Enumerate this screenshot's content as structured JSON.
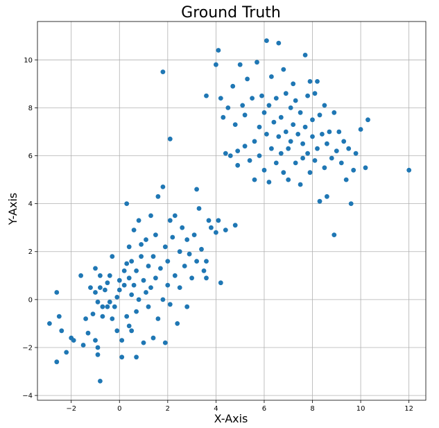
{
  "chart_data": {
    "type": "scatter",
    "title": "Ground Truth",
    "xlabel": "X-Axis",
    "ylabel": "Y-Axis",
    "xlim": [
      -3.4,
      12.7
    ],
    "ylim": [
      -4.2,
      11.6
    ],
    "xticks": [
      -2,
      0,
      2,
      4,
      6,
      8,
      10,
      12
    ],
    "yticks": [
      -4,
      -2,
      0,
      2,
      4,
      6,
      8,
      10
    ],
    "grid": true,
    "marker_color": "#1f77b4",
    "series": [
      {
        "points": [
          [
            -2.9,
            -1.0
          ],
          [
            -2.6,
            0.3
          ],
          [
            -2.6,
            -2.6
          ],
          [
            -2.5,
            -0.7
          ],
          [
            -2.4,
            -1.3
          ],
          [
            -2.2,
            -2.2
          ],
          [
            -2.0,
            -1.6
          ],
          [
            -1.9,
            -1.7
          ],
          [
            -1.6,
            1.0
          ],
          [
            -1.5,
            -1.9
          ],
          [
            -1.4,
            -0.8
          ],
          [
            -1.3,
            -1.4
          ],
          [
            -1.2,
            0.5
          ],
          [
            -1.1,
            -0.6
          ],
          [
            -1.0,
            -1.7
          ],
          [
            -1.0,
            0.3
          ],
          [
            -1.0,
            1.3
          ],
          [
            -0.9,
            -2.3
          ],
          [
            -0.9,
            -0.1
          ],
          [
            -0.9,
            -2.0
          ],
          [
            -0.8,
            -3.4
          ],
          [
            -0.8,
            0.5
          ],
          [
            -0.8,
            1.0
          ],
          [
            -0.7,
            -0.3
          ],
          [
            -0.7,
            -0.7
          ],
          [
            -0.6,
            0.4
          ],
          [
            -0.5,
            0.7
          ],
          [
            -0.5,
            -0.3
          ],
          [
            -0.4,
            1.0
          ],
          [
            -0.4,
            -0.1
          ],
          [
            -0.3,
            -0.8
          ],
          [
            -0.3,
            1.8
          ],
          [
            -0.2,
            -0.3
          ],
          [
            -0.1,
            0.1
          ],
          [
            -0.1,
            -1.3
          ],
          [
            0.0,
            0.4
          ],
          [
            0.0,
            0.8
          ],
          [
            0.1,
            -1.7
          ],
          [
            0.1,
            -2.4
          ],
          [
            0.2,
            0.6
          ],
          [
            0.2,
            1.2
          ],
          [
            0.3,
            -0.7
          ],
          [
            0.3,
            1.5
          ],
          [
            0.3,
            4.0
          ],
          [
            0.4,
            0.9
          ],
          [
            0.4,
            -1.1
          ],
          [
            0.4,
            2.2
          ],
          [
            0.5,
            1.6
          ],
          [
            0.5,
            0.2
          ],
          [
            0.5,
            -1.3
          ],
          [
            0.6,
            2.9
          ],
          [
            0.6,
            0.6
          ],
          [
            0.7,
            -0.5
          ],
          [
            0.7,
            1.2
          ],
          [
            0.7,
            -2.4
          ],
          [
            0.8,
            3.3
          ],
          [
            0.8,
            0.0
          ],
          [
            0.9,
            2.3
          ],
          [
            0.9,
            1.8
          ],
          [
            1.0,
            -1.8
          ],
          [
            1.0,
            0.8
          ],
          [
            1.1,
            2.5
          ],
          [
            1.1,
            0.3
          ],
          [
            1.2,
            1.4
          ],
          [
            1.2,
            -0.3
          ],
          [
            1.3,
            0.5
          ],
          [
            1.3,
            3.5
          ],
          [
            1.4,
            1.8
          ],
          [
            1.4,
            -1.6
          ],
          [
            1.5,
            0.9
          ],
          [
            1.5,
            2.7
          ],
          [
            1.6,
            -0.8
          ],
          [
            1.6,
            4.3
          ],
          [
            1.7,
            1.3
          ],
          [
            1.8,
            4.7
          ],
          [
            1.8,
            0.0
          ],
          [
            1.8,
            9.5
          ],
          [
            1.9,
            2.2
          ],
          [
            1.9,
            -1.8
          ],
          [
            2.0,
            1.6
          ],
          [
            2.0,
            0.6
          ],
          [
            2.1,
            6.7
          ],
          [
            2.1,
            3.3
          ],
          [
            2.1,
            -0.2
          ],
          [
            2.2,
            2.6
          ],
          [
            2.3,
            1.0
          ],
          [
            2.3,
            3.5
          ],
          [
            2.4,
            -1.0
          ],
          [
            2.5,
            2.0
          ],
          [
            2.5,
            0.5
          ],
          [
            2.6,
            3.0
          ],
          [
            2.7,
            1.4
          ],
          [
            2.8,
            2.5
          ],
          [
            2.8,
            -0.3
          ],
          [
            2.9,
            1.9
          ],
          [
            3.0,
            0.9
          ],
          [
            3.1,
            2.7
          ],
          [
            3.2,
            4.6
          ],
          [
            3.2,
            1.6
          ],
          [
            3.3,
            3.8
          ],
          [
            3.4,
            2.1
          ],
          [
            3.5,
            1.2
          ],
          [
            3.6,
            1.6
          ],
          [
            3.6,
            0.9
          ],
          [
            3.7,
            3.3
          ],
          [
            3.8,
            3.0
          ],
          [
            4.0,
            2.8
          ],
          [
            4.1,
            3.3
          ],
          [
            4.2,
            0.7
          ],
          [
            4.4,
            2.9
          ],
          [
            4.8,
            3.1
          ],
          [
            3.6,
            8.5
          ],
          [
            4.0,
            9.8
          ],
          [
            4.1,
            10.4
          ],
          [
            4.2,
            8.4
          ],
          [
            4.3,
            7.6
          ],
          [
            4.4,
            6.1
          ],
          [
            4.5,
            8.0
          ],
          [
            4.6,
            6.0
          ],
          [
            4.7,
            8.9
          ],
          [
            4.8,
            7.3
          ],
          [
            4.9,
            6.2
          ],
          [
            4.9,
            5.6
          ],
          [
            5.0,
            9.8
          ],
          [
            5.1,
            8.1
          ],
          [
            5.2,
            7.7
          ],
          [
            5.2,
            6.4
          ],
          [
            5.3,
            9.2
          ],
          [
            5.4,
            5.8
          ],
          [
            5.5,
            8.4
          ],
          [
            5.6,
            6.6
          ],
          [
            5.6,
            5.0
          ],
          [
            5.7,
            9.9
          ],
          [
            5.8,
            7.2
          ],
          [
            5.8,
            6.0
          ],
          [
            5.9,
            8.5
          ],
          [
            6.0,
            5.4
          ],
          [
            6.0,
            7.8
          ],
          [
            6.1,
            10.8
          ],
          [
            6.1,
            6.9
          ],
          [
            6.2,
            4.9
          ],
          [
            6.2,
            8.1
          ],
          [
            6.3,
            9.3
          ],
          [
            6.3,
            6.3
          ],
          [
            6.4,
            7.4
          ],
          [
            6.5,
            5.7
          ],
          [
            6.5,
            8.4
          ],
          [
            6.6,
            10.7
          ],
          [
            6.6,
            6.8
          ],
          [
            6.7,
            6.1
          ],
          [
            6.7,
            7.6
          ],
          [
            6.8,
            5.3
          ],
          [
            6.8,
            9.6
          ],
          [
            6.9,
            8.6
          ],
          [
            6.9,
            7.0
          ],
          [
            7.0,
            6.3
          ],
          [
            7.0,
            5.0
          ],
          [
            7.1,
            8.0
          ],
          [
            7.1,
            6.6
          ],
          [
            7.2,
            9.0
          ],
          [
            7.2,
            7.3
          ],
          [
            7.3,
            5.7
          ],
          [
            7.3,
            8.3
          ],
          [
            7.4,
            6.9
          ],
          [
            7.5,
            4.8
          ],
          [
            7.5,
            7.8
          ],
          [
            7.6,
            5.9
          ],
          [
            7.6,
            6.5
          ],
          [
            7.7,
            10.2
          ],
          [
            7.7,
            7.2
          ],
          [
            7.8,
            8.5
          ],
          [
            7.8,
            6.1
          ],
          [
            7.9,
            9.1
          ],
          [
            7.9,
            5.3
          ],
          [
            8.0,
            6.8
          ],
          [
            8.0,
            7.5
          ],
          [
            8.1,
            8.6
          ],
          [
            8.1,
            5.8
          ],
          [
            8.2,
            6.3
          ],
          [
            8.2,
            9.1
          ],
          [
            8.3,
            7.7
          ],
          [
            8.3,
            4.1
          ],
          [
            8.4,
            6.9
          ],
          [
            8.5,
            5.5
          ],
          [
            8.5,
            8.1
          ],
          [
            8.6,
            6.5
          ],
          [
            8.6,
            4.3
          ],
          [
            8.7,
            7.0
          ],
          [
            8.8,
            5.9
          ],
          [
            8.9,
            7.8
          ],
          [
            8.9,
            2.7
          ],
          [
            9.0,
            6.2
          ],
          [
            9.1,
            7.0
          ],
          [
            9.2,
            5.7
          ],
          [
            9.3,
            6.6
          ],
          [
            9.4,
            5.0
          ],
          [
            9.5,
            6.3
          ],
          [
            9.6,
            4.0
          ],
          [
            9.7,
            5.4
          ],
          [
            9.8,
            6.1
          ],
          [
            10.0,
            7.1
          ],
          [
            10.2,
            5.5
          ],
          [
            10.3,
            7.5
          ],
          [
            12.0,
            5.4
          ]
        ]
      }
    ]
  }
}
